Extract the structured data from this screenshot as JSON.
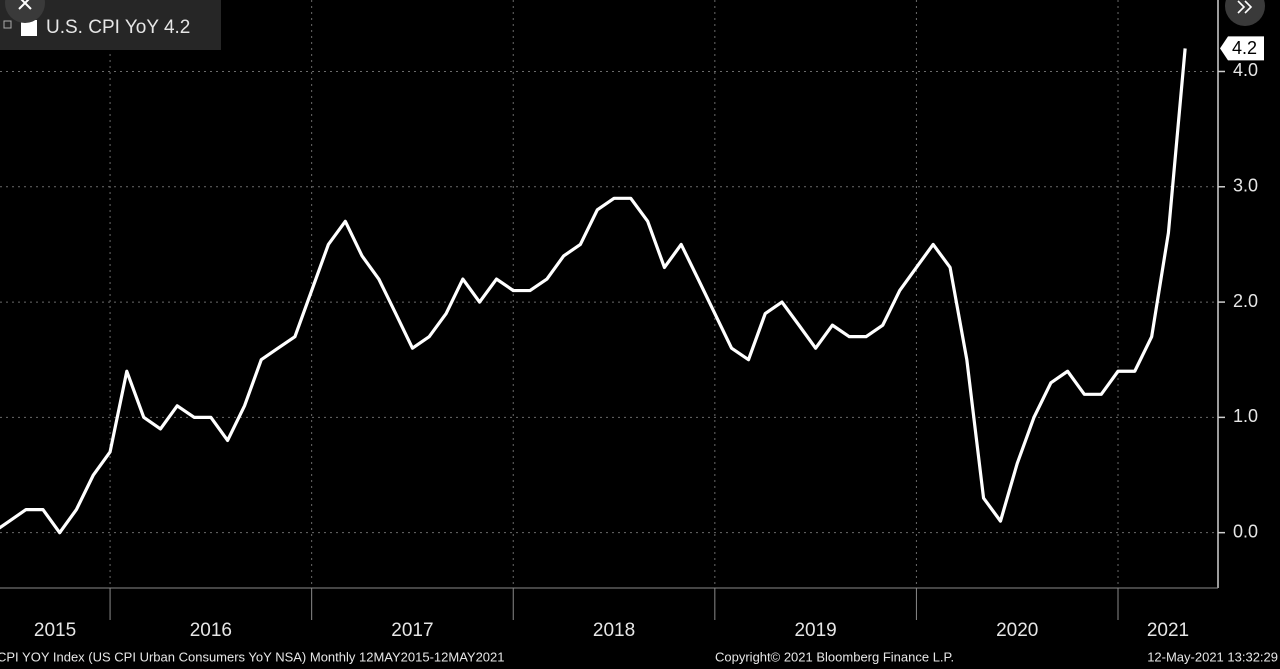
{
  "chart_data": {
    "type": "line",
    "title": "U.S. CPI YoY",
    "last_value_label": "4.2",
    "x": [
      2015.417,
      2015.5,
      2015.583,
      2015.667,
      2015.75,
      2015.833,
      2015.917,
      2016,
      2016.083,
      2016.167,
      2016.25,
      2016.333,
      2016.417,
      2016.5,
      2016.583,
      2016.667,
      2016.75,
      2016.833,
      2016.917,
      2017,
      2017.083,
      2017.167,
      2017.25,
      2017.333,
      2017.417,
      2017.5,
      2017.583,
      2017.667,
      2017.75,
      2017.833,
      2017.917,
      2018,
      2018.083,
      2018.167,
      2018.25,
      2018.333,
      2018.417,
      2018.5,
      2018.583,
      2018.667,
      2018.75,
      2018.833,
      2018.917,
      2019,
      2019.083,
      2019.167,
      2019.25,
      2019.333,
      2019.417,
      2019.5,
      2019.583,
      2019.667,
      2019.75,
      2019.833,
      2019.917,
      2020,
      2020.083,
      2020.167,
      2020.25,
      2020.333,
      2020.417,
      2020.5,
      2020.583,
      2020.667,
      2020.75,
      2020.833,
      2020.917,
      2021,
      2021.083,
      2021.167,
      2021.25,
      2021.333
    ],
    "series": [
      {
        "name": "U.S. CPI YoY",
        "color": "#ffffff",
        "values": [
          0.0,
          0.1,
          0.2,
          0.2,
          0.0,
          0.2,
          0.5,
          0.7,
          1.4,
          1.0,
          0.9,
          1.1,
          1.0,
          1.0,
          0.8,
          1.1,
          1.5,
          1.6,
          1.7,
          2.1,
          2.5,
          2.7,
          2.4,
          2.2,
          1.9,
          1.6,
          1.7,
          1.9,
          2.2,
          2.0,
          2.2,
          2.1,
          2.1,
          2.2,
          2.4,
          2.5,
          2.8,
          2.9,
          2.9,
          2.7,
          2.3,
          2.5,
          2.2,
          1.9,
          1.6,
          1.5,
          1.9,
          2.0,
          1.8,
          1.6,
          1.8,
          1.7,
          1.7,
          1.8,
          2.1,
          2.3,
          2.5,
          2.3,
          1.5,
          0.3,
          0.1,
          0.6,
          1.0,
          1.3,
          1.4,
          1.2,
          1.2,
          1.4,
          1.4,
          1.7,
          2.6,
          4.2
        ]
      }
    ],
    "xlim": [
      2015.454,
      2021.496
    ],
    "xticks": [
      2015,
      2016,
      2017,
      2018,
      2019,
      2020,
      2021
    ],
    "ylim": [
      -0.48,
      4.62
    ],
    "yticks": [
      {
        "value": 0,
        "label": "0.0"
      },
      {
        "value": 1,
        "label": "1.0"
      },
      {
        "value": 2,
        "label": "2.0"
      },
      {
        "value": 3,
        "label": "3.0"
      },
      {
        "value": 4,
        "label": "4.0"
      }
    ],
    "grid": true,
    "footer": {
      "source": "CPI YOY Index (US CPI Urban Consumers YoY NSA)  Monthly 12MAY2015-12MAY2021",
      "copyright": "Copyright© 2021 Bloomberg Finance L.P.",
      "timestamp": "12-May-2021 13:32:29"
    }
  }
}
